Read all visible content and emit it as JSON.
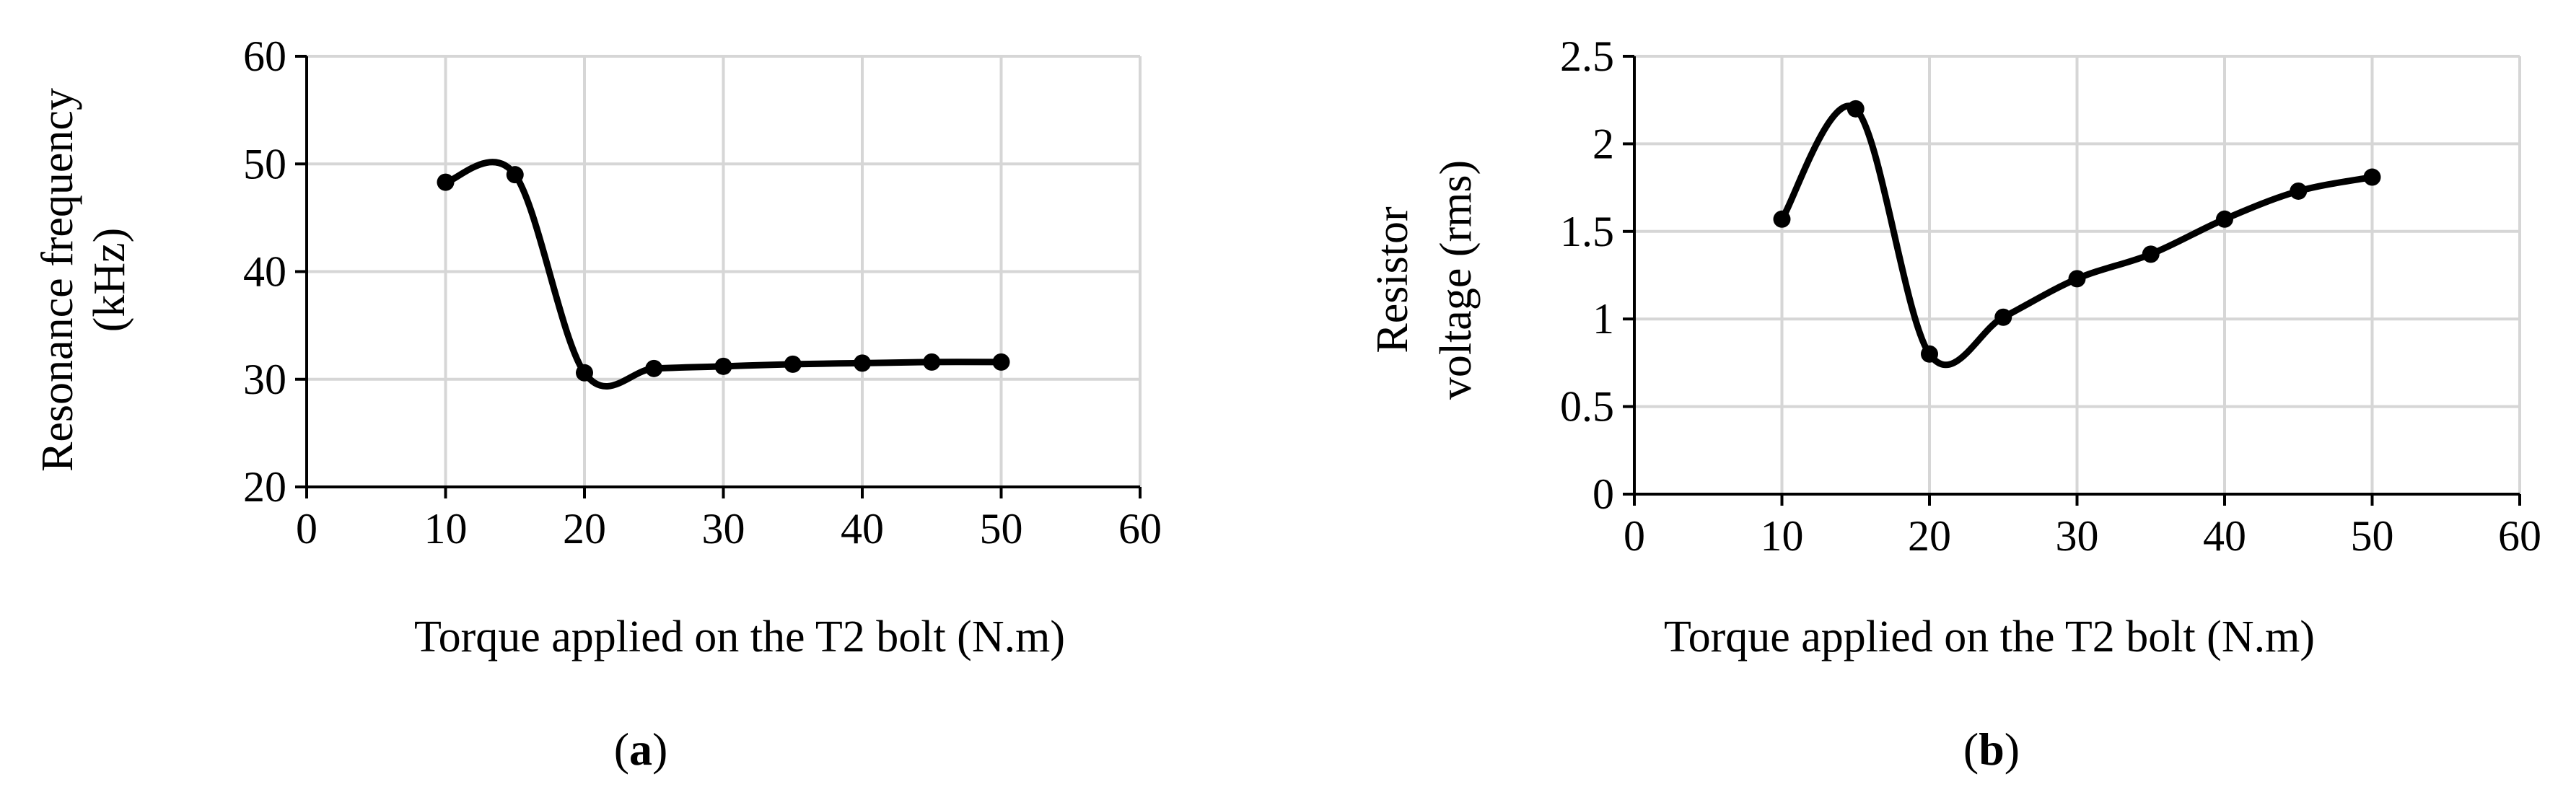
{
  "chart_data": [
    {
      "type": "line",
      "panel_label": "a",
      "xlabel": "Torque applied on the T2 bolt (N.m)",
      "ylabel": [
        "Resonance frequency",
        "(kHz)"
      ],
      "xlim": [
        0,
        60
      ],
      "ylim": [
        20,
        60
      ],
      "xticks": [
        "0",
        "10",
        "20",
        "30",
        "40",
        "50",
        "60"
      ],
      "yticks": [
        "20",
        "30",
        "40",
        "50",
        "60"
      ],
      "grid": true,
      "smooth": true,
      "series": [
        {
          "x": [
            10,
            15,
            20,
            25,
            30,
            35,
            40,
            45,
            50
          ],
          "y": [
            48.3,
            49.0,
            30.6,
            31.0,
            31.2,
            31.4,
            31.5,
            31.6,
            31.6
          ]
        }
      ]
    },
    {
      "type": "line",
      "panel_label": "b",
      "xlabel": "Torque applied on the T2 bolt (N.m)",
      "ylabel": [
        "Resistor",
        "voltage (rms)"
      ],
      "xlim": [
        0,
        60
      ],
      "ylim": [
        0,
        2.5
      ],
      "xticks": [
        "0",
        "10",
        "20",
        "30",
        "40",
        "50",
        "60"
      ],
      "yticks": [
        "0",
        "0.5",
        "1",
        "1.5",
        "2",
        "2.5"
      ],
      "grid": true,
      "smooth": true,
      "series": [
        {
          "x": [
            10,
            15,
            20,
            25,
            30,
            35,
            40,
            45,
            50
          ],
          "y": [
            1.57,
            2.2,
            0.8,
            1.01,
            1.23,
            1.37,
            1.57,
            1.73,
            1.81
          ]
        }
      ]
    }
  ],
  "captions": {
    "a": {
      "open": "(",
      "letter": "a",
      "close": ")"
    },
    "b": {
      "open": "(",
      "letter": "b",
      "close": ")"
    }
  }
}
